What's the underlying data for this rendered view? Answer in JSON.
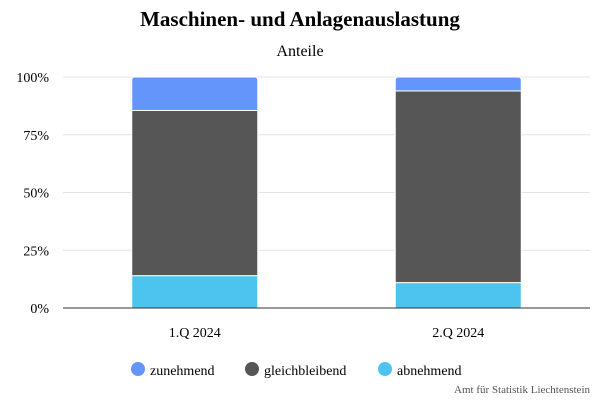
{
  "chart_data": {
    "type": "bar",
    "stacked": true,
    "title": "Maschinen- und Anlagenauslastung",
    "subtitle": "Anteile",
    "categories": [
      "1.Q 2024",
      "2.Q 2024"
    ],
    "series": [
      {
        "name": "abnehmend",
        "values": [
          14,
          11
        ],
        "color": "#4dc3f0"
      },
      {
        "name": "gleichbleibend",
        "values": [
          71.5,
          83
        ],
        "color": "#565656"
      },
      {
        "name": "zunehmend",
        "values": [
          14.5,
          6
        ],
        "color": "#6495fb"
      }
    ],
    "ylim": [
      0,
      100
    ],
    "yticks": [
      0,
      25,
      50,
      75,
      100
    ],
    "ytick_labels": [
      "0%",
      "25%",
      "50%",
      "75%",
      "100%"
    ],
    "legend_order": [
      "zunehmend",
      "gleichbleibend",
      "abnehmend"
    ],
    "legend_position": "bottom",
    "grid": true,
    "source": "Amt für Statistik Liechtenstein"
  }
}
